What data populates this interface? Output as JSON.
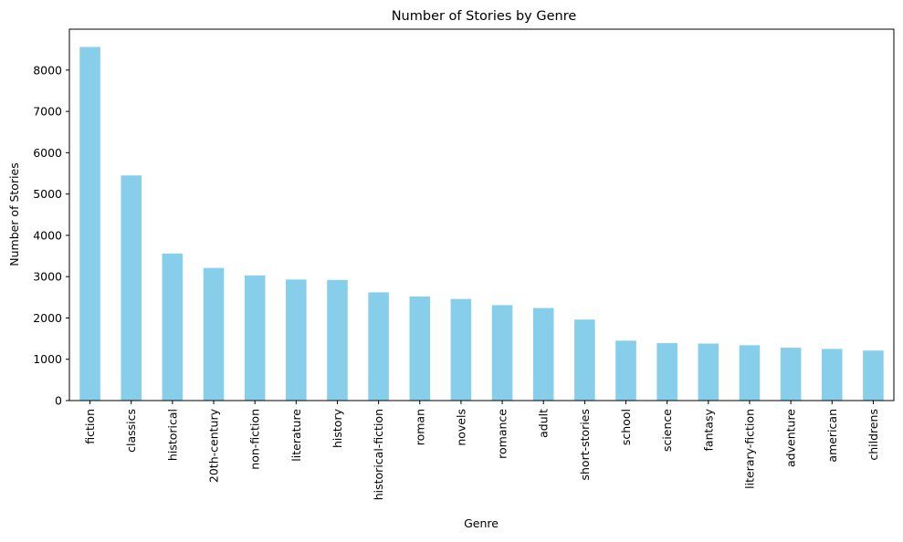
{
  "chart_data": {
    "type": "bar",
    "title": "Number of Stories by Genre",
    "xlabel": "Genre",
    "ylabel": "Number of Stories",
    "categories": [
      "fiction",
      "classics",
      "historical",
      "20th-century",
      "non-fiction",
      "literature",
      "history",
      "historical-fiction",
      "roman",
      "novels",
      "romance",
      "adult",
      "short-stories",
      "school",
      "science",
      "fantasy",
      "literary-fiction",
      "adventure",
      "american",
      "childrens"
    ],
    "values": [
      8560,
      5450,
      3560,
      3210,
      3030,
      2930,
      2920,
      2620,
      2520,
      2460,
      2310,
      2240,
      1960,
      1450,
      1390,
      1380,
      1340,
      1280,
      1250,
      1210
    ],
    "ylim": [
      0,
      8990
    ],
    "yticks": [
      0,
      1000,
      2000,
      3000,
      4000,
      5000,
      6000,
      7000,
      8000
    ],
    "bar_color": "#87ceeb",
    "grid": false,
    "legend": "none"
  }
}
